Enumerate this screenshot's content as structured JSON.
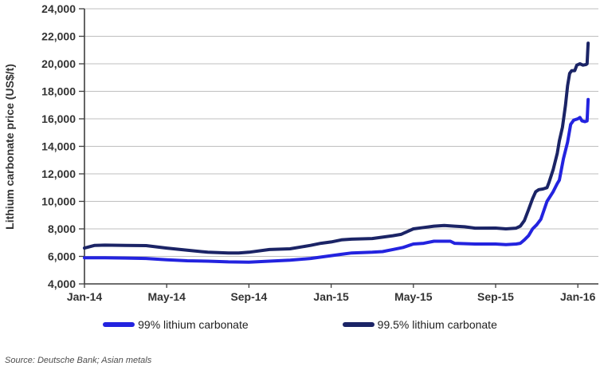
{
  "chart_data": {
    "type": "line",
    "title": "",
    "xlabel": "",
    "ylabel": "Lithium carbonate price (US$/t)",
    "ylim": [
      4000,
      24000
    ],
    "yticks": [
      4000,
      6000,
      8000,
      10000,
      12000,
      14000,
      16000,
      18000,
      20000,
      22000,
      24000
    ],
    "ytick_labels": [
      "4,000",
      "6,000",
      "8,000",
      "10,000",
      "12,000",
      "14,000",
      "16,000",
      "18,000",
      "20,000",
      "22,000",
      "24,000"
    ],
    "xlim_months": [
      0,
      25
    ],
    "xtick_months": [
      0,
      4,
      8,
      12,
      16,
      20,
      24
    ],
    "xtick_labels": [
      "Jan-14",
      "May-14",
      "Sep-14",
      "Jan-15",
      "May-15",
      "Sep-15",
      "Jan-16"
    ],
    "grid": "horizontal-only",
    "legend_position": "bottom",
    "axis_color": "#3f3f3f",
    "grid_color": "#bfbfbf",
    "series": [
      {
        "name": "99% lithium carbonate",
        "color": "#2323DF",
        "x_months_from_jan14": [
          0,
          1,
          2,
          3,
          4,
          5,
          6,
          7,
          8,
          9,
          10,
          11,
          11.5,
          12,
          12.5,
          13,
          14,
          14.5,
          15,
          15.5,
          15.8,
          16,
          16.5,
          17,
          17.5,
          17.8,
          18,
          19,
          20,
          20.5,
          21,
          21.2,
          21.4,
          21.6,
          21.8,
          22,
          22.2,
          22.5,
          22.8,
          23,
          23.1,
          23.3,
          23.5,
          23.65,
          23.8,
          24,
          24.1,
          24.2,
          24.35,
          24.45,
          24.5
        ],
        "values": [
          5900,
          5900,
          5880,
          5850,
          5750,
          5680,
          5650,
          5600,
          5580,
          5650,
          5720,
          5850,
          5950,
          6050,
          6150,
          6250,
          6300,
          6350,
          6500,
          6650,
          6800,
          6900,
          6950,
          7100,
          7100,
          7100,
          6950,
          6900,
          6900,
          6850,
          6900,
          6950,
          7200,
          7500,
          8000,
          8300,
          8700,
          10000,
          10700,
          11300,
          11550,
          13100,
          14300,
          15600,
          15900,
          16000,
          16100,
          15850,
          15800,
          15850,
          17400
        ]
      },
      {
        "name": "99.5% lithium carbonate",
        "color": "#1B2466",
        "x_months_from_jan14": [
          0,
          0.5,
          1,
          2,
          3,
          4,
          5,
          6,
          7,
          7.5,
          8,
          9,
          10,
          11,
          11.5,
          12,
          12.5,
          13,
          14,
          14.5,
          15,
          15.4,
          15.7,
          16,
          16.5,
          17,
          17.5,
          18,
          18.5,
          19,
          20,
          20.5,
          21,
          21.2,
          21.4,
          21.6,
          21.8,
          21.95,
          22.1,
          22.3,
          22.5,
          22.6,
          22.8,
          23,
          23.1,
          23.25,
          23.4,
          23.5,
          23.6,
          23.7,
          23.85,
          23.95,
          24.1,
          24.25,
          24.4,
          24.45,
          24.5
        ],
        "values": [
          6600,
          6800,
          6820,
          6800,
          6780,
          6600,
          6450,
          6300,
          6250,
          6250,
          6300,
          6500,
          6550,
          6800,
          6950,
          7050,
          7200,
          7250,
          7300,
          7400,
          7500,
          7600,
          7800,
          8000,
          8100,
          8200,
          8250,
          8200,
          8150,
          8050,
          8060,
          8000,
          8050,
          8200,
          8600,
          9400,
          10200,
          10700,
          10850,
          10900,
          11000,
          11400,
          12300,
          13500,
          14400,
          15400,
          17000,
          18400,
          19300,
          19500,
          19500,
          19900,
          20000,
          19900,
          19950,
          20000,
          21500
        ]
      }
    ]
  },
  "legend": {
    "item1_label": "99% lithium carbonate",
    "item2_label": "99.5% lithium carbonate"
  },
  "source_note": "Source: Deutsche Bank; Asian metals"
}
